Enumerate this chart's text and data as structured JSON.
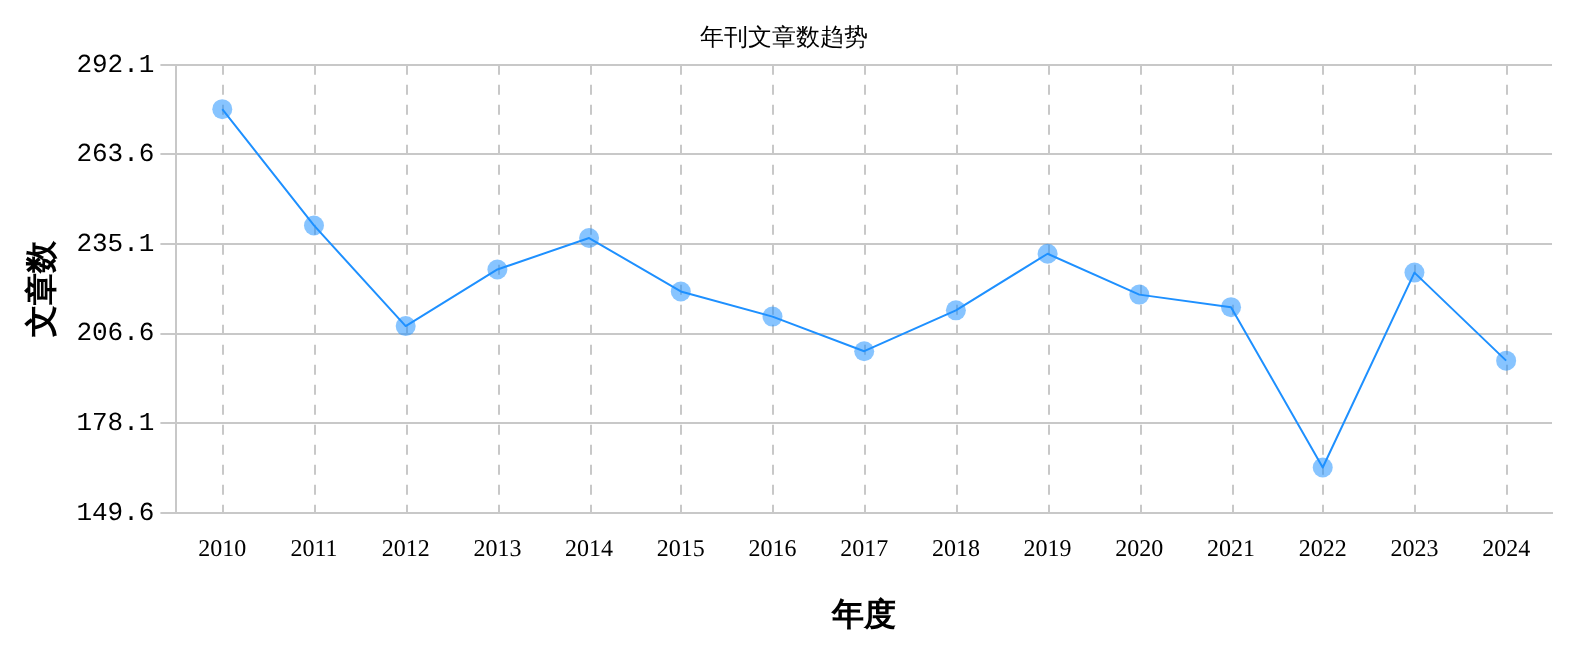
{
  "chart_data": {
    "type": "line",
    "title": "年刊文章数趋势",
    "xlabel": "年度",
    "ylabel": "文章数",
    "categories": [
      "2010",
      "2011",
      "2012",
      "2013",
      "2014",
      "2015",
      "2016",
      "2017",
      "2018",
      "2019",
      "2020",
      "2021",
      "2022",
      "2023",
      "2024"
    ],
    "series": [
      {
        "color": "#1e90ff",
        "values": [
          278,
          241,
          209,
          227,
          237,
          220,
          212,
          201,
          214,
          232,
          219,
          215,
          164,
          226,
          198
        ]
      }
    ],
    "ylim": [
      149.6,
      292.1
    ],
    "yticks": [
      149.6,
      178.1,
      206.6,
      235.1,
      263.6,
      292.1
    ],
    "grid": true,
    "marker": "circle",
    "line_style": "solid",
    "legend": false
  }
}
